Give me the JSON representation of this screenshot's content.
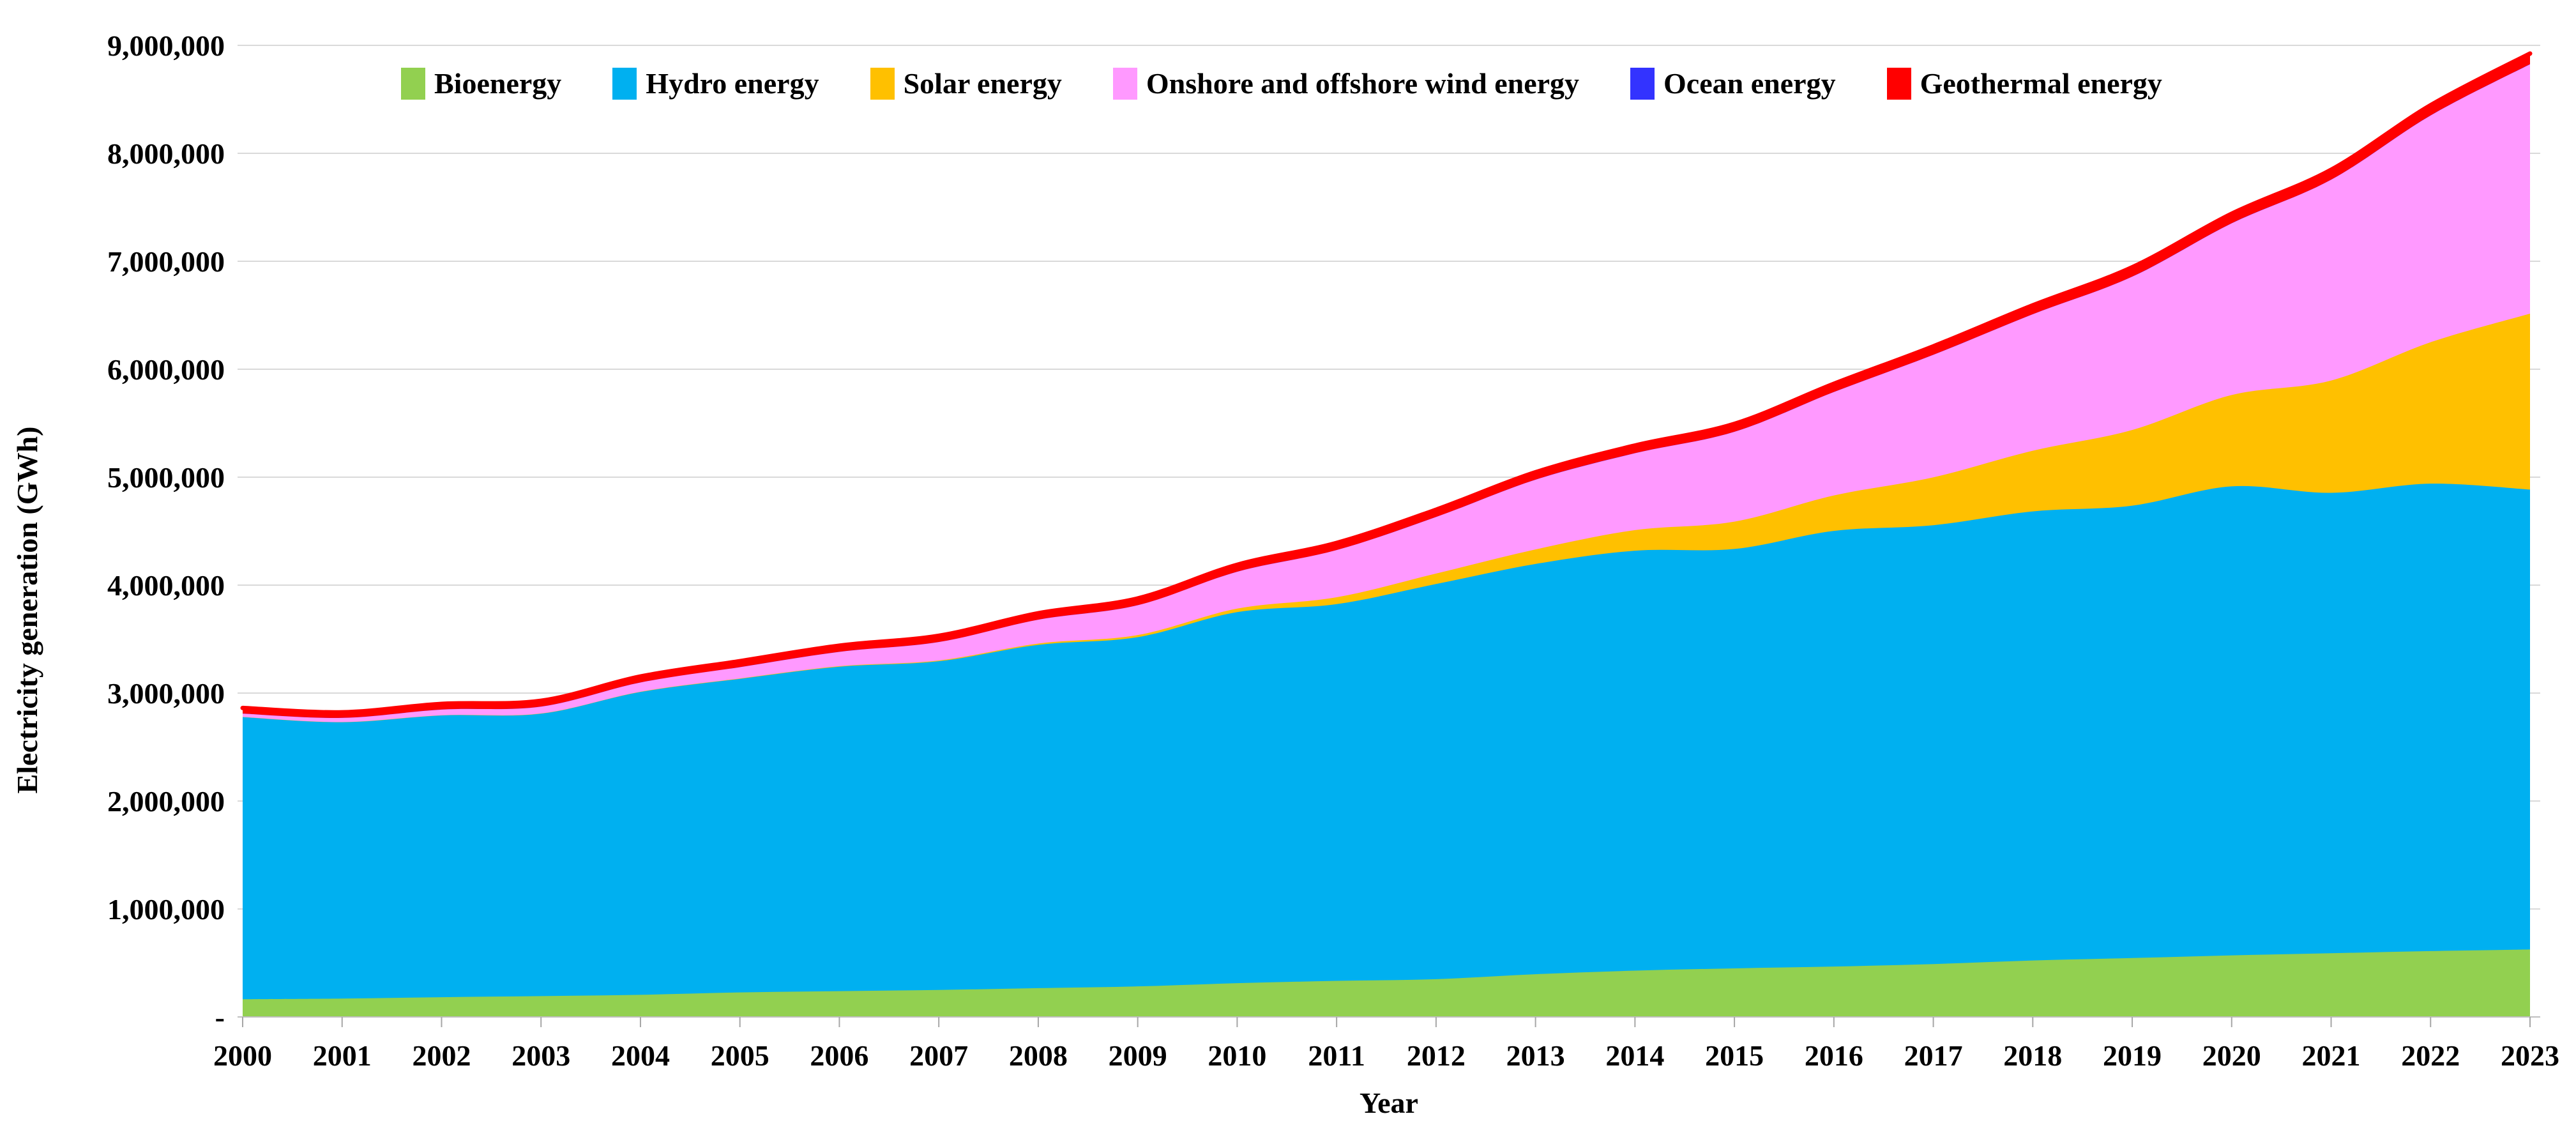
{
  "chart_data": {
    "type": "area",
    "stacked": true,
    "title": "",
    "xlabel": "Year",
    "ylabel": "Electricity generation (GWh)",
    "x": [
      "2000",
      "2001",
      "2002",
      "2003",
      "2004",
      "2005",
      "2006",
      "2007",
      "2008",
      "2009",
      "2010",
      "2011",
      "2012",
      "2013",
      "2014",
      "2015",
      "2016",
      "2017",
      "2018",
      "2019",
      "2020",
      "2021",
      "2022",
      "2023"
    ],
    "series": [
      {
        "name": "Bioenergy",
        "color": "#92D050",
        "values": [
          164000,
          170000,
          183000,
          193000,
          205000,
          227000,
          239000,
          250000,
          267000,
          283000,
          313000,
          334000,
          350000,
          396000,
          429000,
          450000,
          467000,
          490000,
          523000,
          546000,
          570000,
          590000,
          610000,
          625000
        ]
      },
      {
        "name": "Hydro energy",
        "color": "#00B0F0",
        "values": [
          2613000,
          2560000,
          2610000,
          2616000,
          2805000,
          2905000,
          3005000,
          3045000,
          3180000,
          3235000,
          3437000,
          3490000,
          3660000,
          3800000,
          3890000,
          3885000,
          4035000,
          4065000,
          4160000,
          4190000,
          4345000,
          4265000,
          4330000,
          4260000
        ]
      },
      {
        "name": "Solar energy",
        "color": "#FFC000",
        "values": [
          1100,
          1400,
          1700,
          2100,
          2800,
          3700,
          5000,
          6800,
          11900,
          19800,
          32200,
          63600,
          97000,
          134500,
          190600,
          253000,
          328500,
          443600,
          562000,
          701000,
          846000,
          1040000,
          1310000,
          1630000
        ]
      },
      {
        "name": "Onshore and offshore wind energy",
        "color": "#FF99FF",
        "values": [
          31400,
          38400,
          52300,
          63300,
          85100,
          104100,
          132900,
          170700,
          220600,
          275900,
          341600,
          436800,
          523800,
          645700,
          712000,
          831800,
          957700,
          1134400,
          1263900,
          1420000,
          1590000,
          1860000,
          2100000,
          2310000
        ]
      },
      {
        "name": "Ocean energy",
        "color": "#3333FF",
        "values": [
          550,
          550,
          550,
          550,
          550,
          550,
          550,
          550,
          550,
          550,
          550,
          560,
          560,
          930,
          950,
          970,
          990,
          1000,
          1000,
          1000,
          1000,
          1000,
          1000,
          1000
        ]
      },
      {
        "name": "Geothermal energy",
        "color": "#FF0000",
        "values": [
          52000,
          51500,
          51800,
          53200,
          54800,
          55300,
          56600,
          57600,
          59400,
          62000,
          63700,
          65600,
          66900,
          68100,
          70500,
          72800,
          75500,
          77800,
          81700,
          85900,
          88000,
          91000,
          94000,
          98000
        ]
      }
    ],
    "ylim": [
      0,
      9000000
    ],
    "ytick_interval": 1000000,
    "yticks": [
      {
        "value": 0,
        "label": "-"
      },
      {
        "value": 1000000,
        "label": "1,000,000"
      },
      {
        "value": 2000000,
        "label": "2,000,000"
      },
      {
        "value": 3000000,
        "label": "3,000,000"
      },
      {
        "value": 4000000,
        "label": "4,000,000"
      },
      {
        "value": 5000000,
        "label": "5,000,000"
      },
      {
        "value": 6000000,
        "label": "6,000,000"
      },
      {
        "value": 7000000,
        "label": "7,000,000"
      },
      {
        "value": 8000000,
        "label": "8,000,000"
      },
      {
        "value": 9000000,
        "label": "9,000,000"
      }
    ],
    "grid": "horizontal",
    "legend_position": "top",
    "top_line": {
      "series": "Geothermal energy",
      "color": "#FF0000",
      "width": 7
    },
    "style": {
      "gridline_color": "#D9D9D9",
      "axis_line_color": "#BFBFBF",
      "tick_color": "#A6A6A6",
      "text_color": "#000000",
      "background": "#FFFFFF"
    }
  }
}
